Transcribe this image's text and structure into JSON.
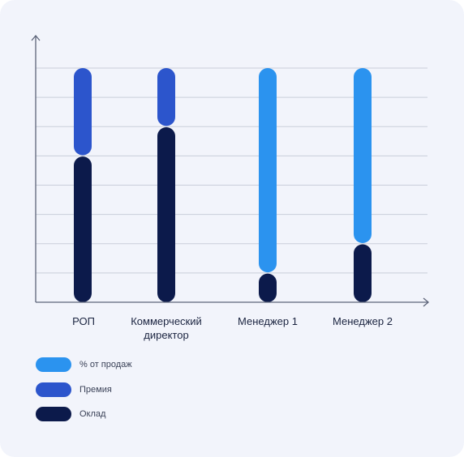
{
  "chart_data": {
    "type": "bar",
    "stacked": true,
    "categories": [
      "РОП",
      "Коммерческий директор",
      "Менеджер 1",
      "Менеджер 2"
    ],
    "series": [
      {
        "name": "Оклад",
        "color": "#0c1a4b",
        "values": [
          5,
          6,
          1,
          2
        ]
      },
      {
        "name": "Премия",
        "color": "#2c55cc",
        "values": [
          3,
          2,
          0,
          0
        ]
      },
      {
        "name": "% от продаж",
        "color": "#2b93ef",
        "values": [
          0,
          0,
          7,
          6
        ]
      }
    ],
    "ylim": [
      0,
      8
    ],
    "grid": true,
    "legend_position": "bottom-left",
    "title": "",
    "xlabel": "",
    "ylabel": ""
  },
  "legend": [
    {
      "label": "% от продаж",
      "color": "#2b93ef"
    },
    {
      "label": "Премия",
      "color": "#2c55cc"
    },
    {
      "label": "Оклад",
      "color": "#0c1a4b"
    }
  ]
}
